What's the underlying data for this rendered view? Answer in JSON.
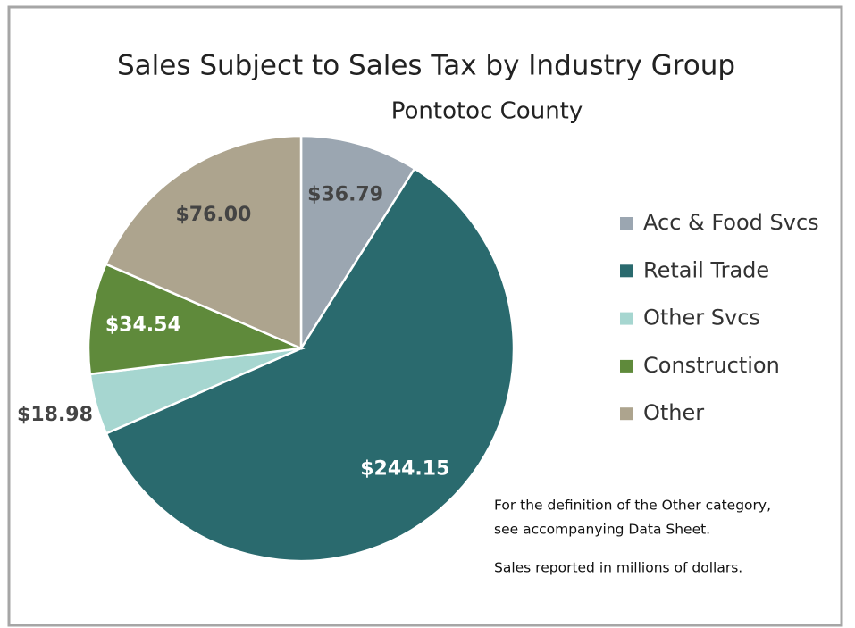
{
  "chart_data": {
    "type": "pie",
    "title": "Sales Subject to Sales Tax by Industry Group",
    "subtitle": "Pontotoc County",
    "categories": [
      "Acc & Food Svcs",
      "Retail Trade",
      "Other Svcs",
      "Construction",
      "Other"
    ],
    "values": [
      36.79,
      244.15,
      18.98,
      34.54,
      76.0
    ],
    "value_labels": [
      "$36.79",
      "$244.15",
      "$18.98",
      "$34.54",
      "$76.00"
    ],
    "colors": [
      "#9ba6b1",
      "#2a6a6e",
      "#a6d6d0",
      "#5f8a3b",
      "#ada48e"
    ],
    "legend": "right",
    "annotations": [
      "For the definition of the Other category,",
      "see accompanying Data Sheet.",
      "Sales reported in millions of dollars."
    ]
  }
}
